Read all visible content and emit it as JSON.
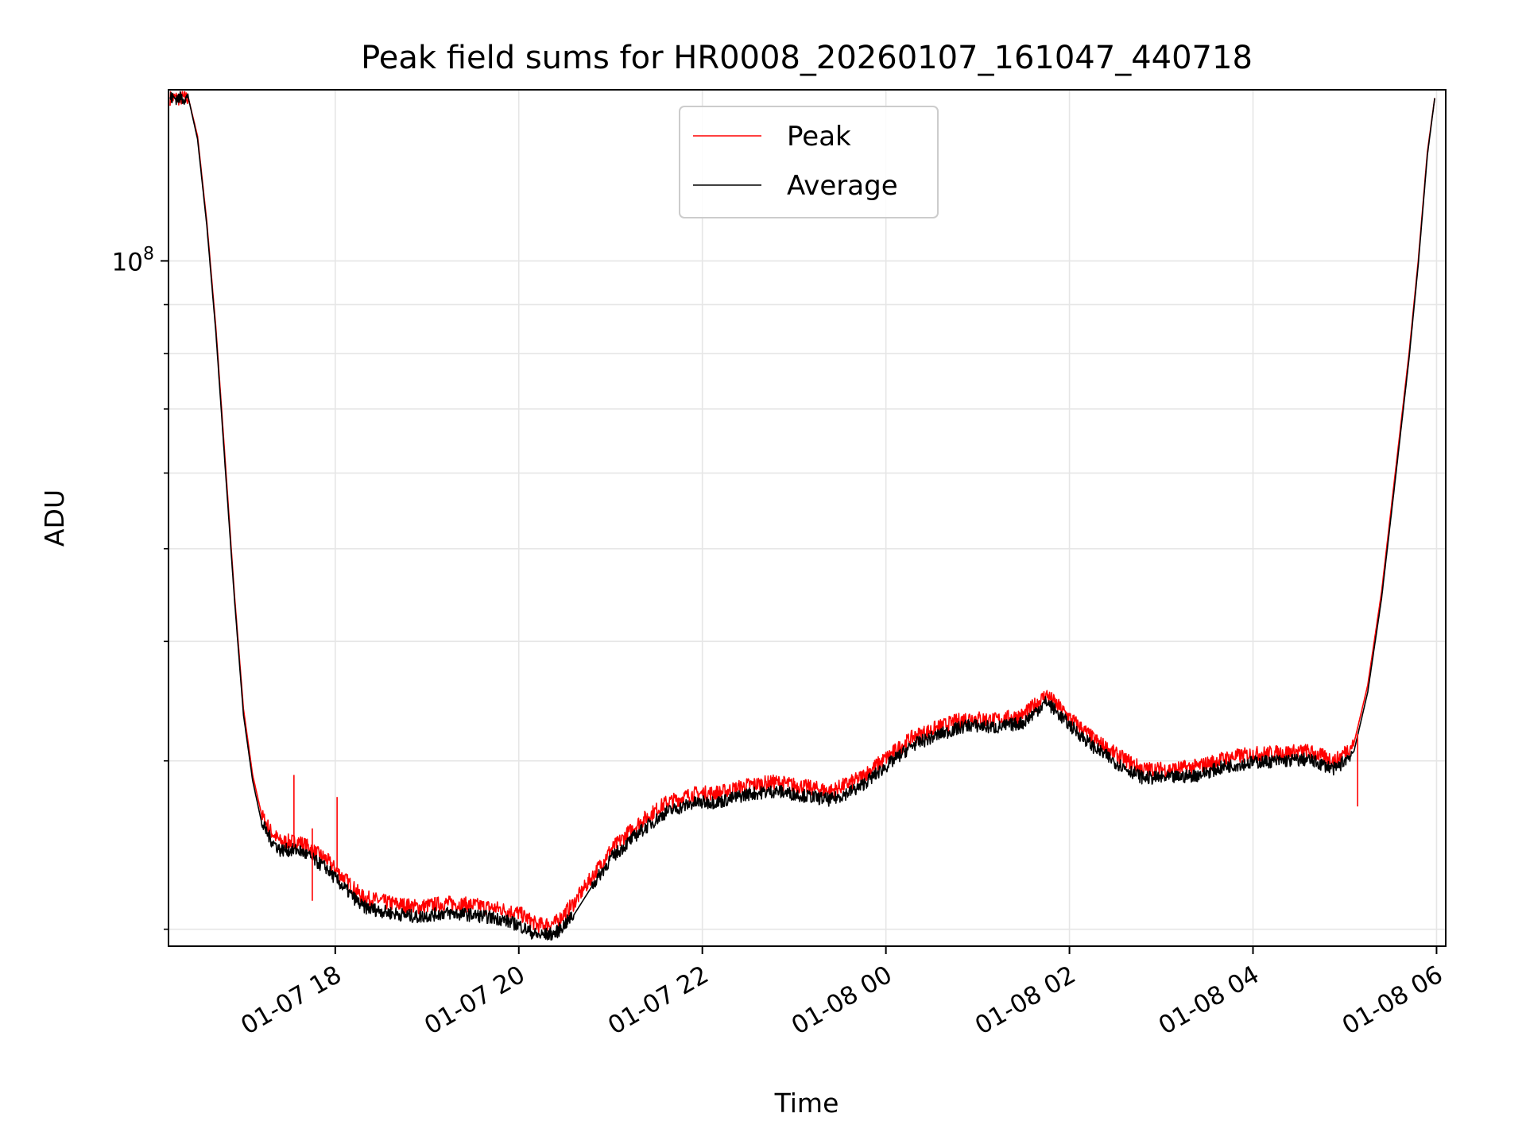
{
  "chart_data": {
    "type": "line",
    "title": "Peak field sums for HR0008_20260107_161047_440718",
    "xlabel": "Time",
    "ylabel": "ADU",
    "y_scale": "log",
    "xlim_hours": [
      16.183,
      6.1
    ],
    "ylim": [
      19200000,
      151000000
    ],
    "grid": true,
    "legend_location": "upper center",
    "x_ticks": [
      {
        "label": "01-07 18",
        "hour": 18
      },
      {
        "label": "01-07 20",
        "hour": 20
      },
      {
        "label": "01-07 22",
        "hour": 22
      },
      {
        "label": "01-08 00",
        "hour": 24
      },
      {
        "label": "01-08 02",
        "hour": 26
      },
      {
        "label": "01-08 04",
        "hour": 28
      },
      {
        "label": "01-08 06",
        "hour": 30
      }
    ],
    "y_major_ticks": [
      {
        "base": "10",
        "exp": "8",
        "value": 100000000
      }
    ],
    "y_minor_ticks": [
      20000000,
      30000000,
      40000000,
      50000000,
      60000000,
      70000000,
      80000000,
      90000000,
      200000000
    ],
    "x_hours": [
      16.2,
      16.4,
      16.5,
      16.6,
      16.7,
      16.8,
      16.9,
      17.0,
      17.1,
      17.2,
      17.3,
      17.4,
      17.5,
      17.6,
      17.7,
      17.8,
      17.9,
      18.0,
      18.3,
      18.6,
      18.9,
      19.2,
      19.5,
      19.8,
      20.0,
      20.2,
      20.4,
      20.6,
      20.8,
      21.0,
      21.3,
      21.6,
      21.9,
      22.2,
      22.5,
      22.8,
      23.1,
      23.4,
      23.7,
      24.0,
      24.3,
      24.6,
      24.9,
      25.2,
      25.5,
      25.75,
      26.0,
      26.25,
      26.5,
      26.8,
      27.1,
      27.4,
      27.7,
      28.0,
      28.3,
      28.6,
      28.9,
      29.1,
      29.25,
      29.4,
      29.55,
      29.7,
      29.8,
      29.9,
      29.98
    ],
    "series": [
      {
        "name": "Peak",
        "color": "#ff0000",
        "values": [
          148000000,
          148000000,
          135000000,
          110000000,
          85000000,
          62000000,
          45000000,
          34000000,
          29000000,
          26300000,
          25300000,
          24700000,
          24700000,
          24700000,
          24400000,
          24000000,
          23700000,
          23100000,
          21600000,
          21300000,
          21100000,
          21300000,
          21200000,
          21000000,
          20800000,
          20200000,
          20300000,
          21300000,
          22700000,
          24200000,
          25800000,
          27100000,
          27700000,
          27800000,
          28300000,
          28500000,
          28200000,
          27900000,
          28700000,
          30200000,
          31800000,
          32600000,
          33300000,
          33100000,
          33500000,
          35200000,
          33300000,
          31700000,
          30500000,
          29400000,
          29400000,
          29600000,
          30200000,
          30500000,
          30600000,
          30700000,
          30000000,
          31300000,
          36000000,
          45000000,
          60000000,
          80000000,
          100000000,
          130000000,
          148000000
        ]
      },
      {
        "name": "Average",
        "color": "#000000",
        "values": [
          148000000,
          148000000,
          134000000,
          109000000,
          84000000,
          61000000,
          44500000,
          33500000,
          28600000,
          25800000,
          24800000,
          24200000,
          24200000,
          24200000,
          23900000,
          23500000,
          23200000,
          22600000,
          21100000,
          20800000,
          20600000,
          20800000,
          20700000,
          20500000,
          20200000,
          19700000,
          19800000,
          20700000,
          22200000,
          23700000,
          25200000,
          26500000,
          27100000,
          27200000,
          27700000,
          27900000,
          27600000,
          27300000,
          28100000,
          29600000,
          31200000,
          32000000,
          32700000,
          32500000,
          32900000,
          34600000,
          32700000,
          31100000,
          29900000,
          28800000,
          28800000,
          29000000,
          29600000,
          29900000,
          30000000,
          30100000,
          29400000,
          30700000,
          35400000,
          44300000,
          59000000,
          79000000,
          99000000,
          129000000,
          148000000
        ]
      }
    ]
  }
}
